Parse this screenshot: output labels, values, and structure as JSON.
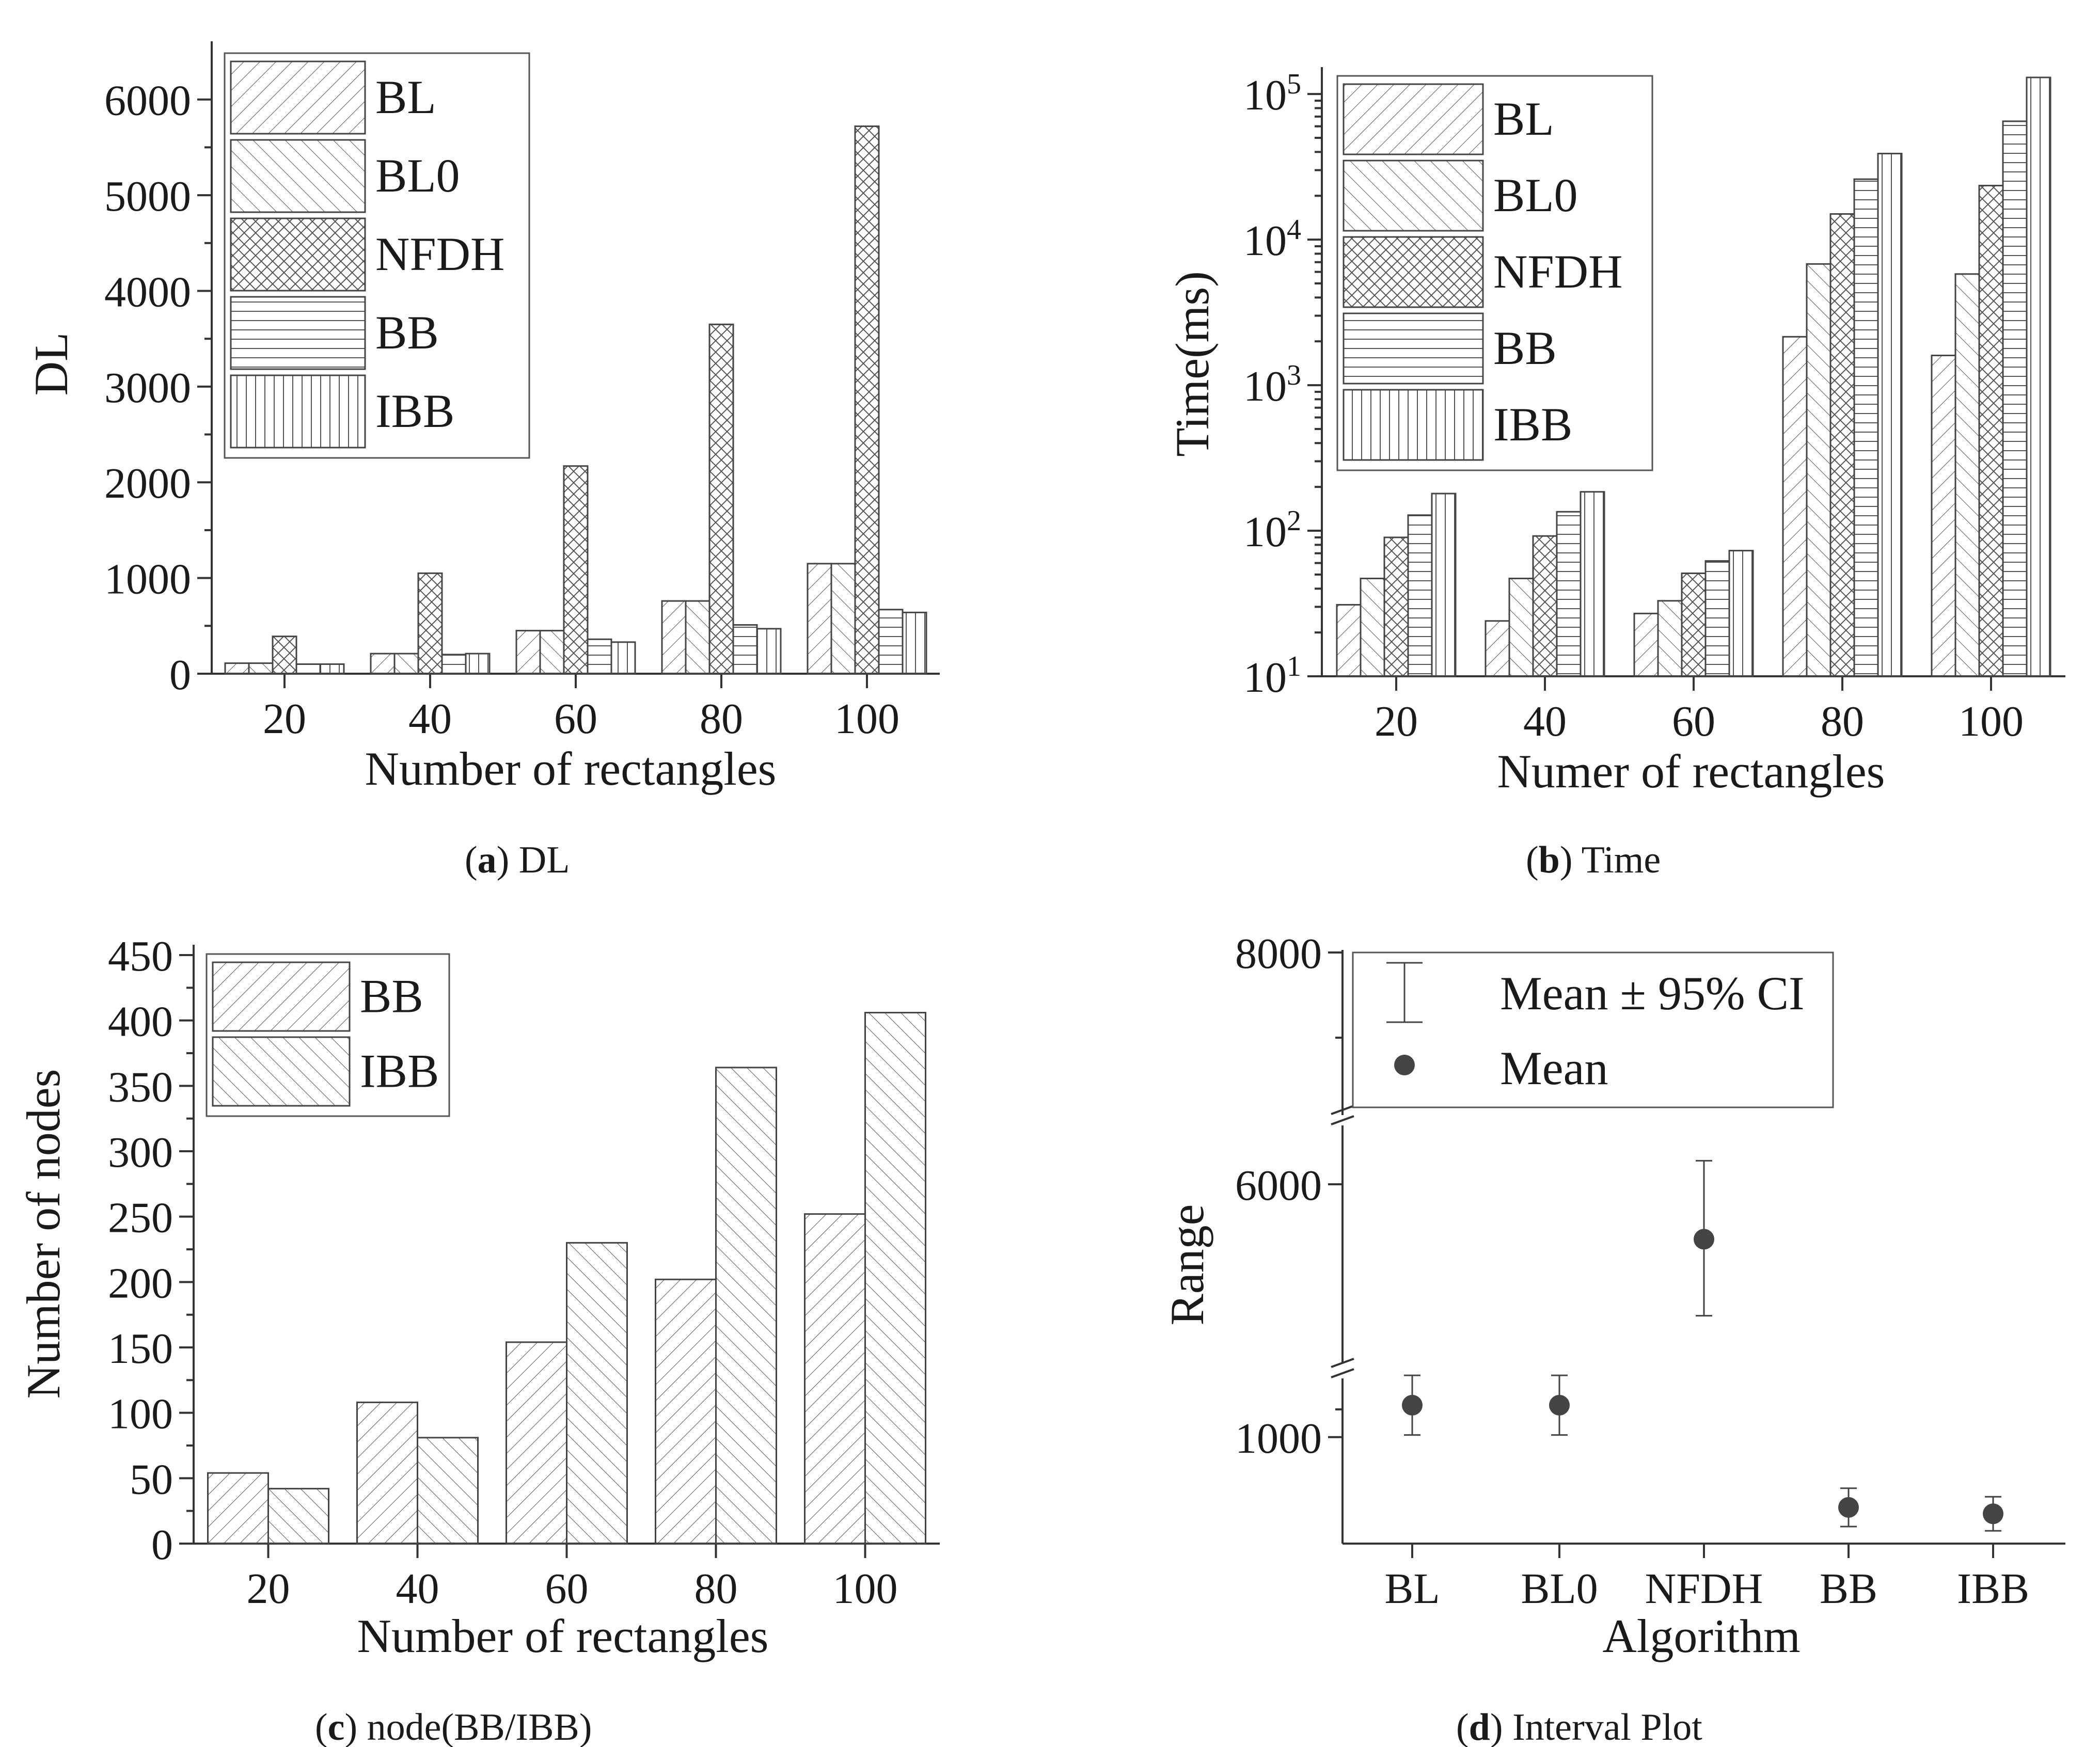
{
  "chart_data": [
    {
      "id": "a",
      "type": "bar",
      "caption_letter": "a",
      "caption_text": ") DL",
      "categories": [
        "20",
        "40",
        "60",
        "80",
        "100"
      ],
      "series": [
        {
          "name": "BL",
          "values": [
            110,
            210,
            450,
            760,
            1150
          ]
        },
        {
          "name": "BL0",
          "values": [
            110,
            210,
            450,
            760,
            1150
          ]
        },
        {
          "name": "NFDH",
          "values": [
            390,
            1050,
            2170,
            3650,
            5720
          ]
        },
        {
          "name": "BB",
          "values": [
            100,
            200,
            360,
            510,
            670
          ]
        },
        {
          "name": "IBB",
          "values": [
            100,
            210,
            330,
            470,
            640
          ]
        }
      ],
      "xlabel": "Number of rectangles",
      "ylabel": "DL",
      "ylim": [
        0,
        6500
      ],
      "yticks": [
        0,
        1000,
        2000,
        3000,
        4000,
        5000,
        6000
      ],
      "legend_position": "top-left"
    },
    {
      "id": "b",
      "type": "bar",
      "yscale": "log",
      "caption_letter": "b",
      "caption_text": ") Time",
      "categories": [
        "20",
        "40",
        "60",
        "80",
        "100"
      ],
      "series": [
        {
          "name": "BL",
          "values": [
            31,
            24,
            27,
            2150,
            1600
          ]
        },
        {
          "name": "BL0",
          "values": [
            47,
            47,
            33,
            6800,
            5800
          ]
        },
        {
          "name": "NFDH",
          "values": [
            90,
            92,
            51,
            15000,
            23500
          ]
        },
        {
          "name": "BB",
          "values": [
            128,
            135,
            62,
            26000,
            65000
          ]
        },
        {
          "name": "IBB",
          "values": [
            180,
            185,
            73,
            39000,
            130000
          ]
        }
      ],
      "xlabel": "Numer of rectangles",
      "ylabel": "Time(ms)",
      "ylim": [
        10,
        130000
      ],
      "yticks": [
        10,
        100,
        1000,
        10000,
        100000
      ],
      "ytick_labels": [
        {
          "base": "10",
          "exp": "1"
        },
        {
          "base": "10",
          "exp": "2"
        },
        {
          "base": "10",
          "exp": "3"
        },
        {
          "base": "10",
          "exp": "4"
        },
        {
          "base": "10",
          "exp": "5"
        }
      ],
      "legend_position": "top-left"
    },
    {
      "id": "c",
      "type": "bar",
      "caption_letter": "c",
      "caption_text": ") node(BB/IBB)",
      "categories": [
        "20",
        "40",
        "60",
        "80",
        "100"
      ],
      "series": [
        {
          "name": "BB",
          "values": [
            54,
            108,
            154,
            202,
            252
          ]
        },
        {
          "name": "IBB",
          "values": [
            42,
            81,
            230,
            364,
            406
          ]
        }
      ],
      "xlabel": "Number of  rectangles",
      "ylabel": "Number of nodes",
      "ylim": [
        0,
        450
      ],
      "yticks": [
        0,
        50,
        100,
        150,
        200,
        250,
        300,
        350,
        400,
        450
      ],
      "legend_position": "top-left"
    },
    {
      "id": "d",
      "type": "scatter",
      "subtype": "interval",
      "caption_letter": "d",
      "caption_text": ") Interval Plot",
      "categories": [
        "BL",
        "BL0",
        "NFDH",
        "BB",
        "IBB"
      ],
      "mean": [
        1150,
        1150,
        5720,
        670,
        640
      ],
      "ci_low": [
        1010,
        1010,
        5330,
        580,
        560
      ],
      "ci_high": [
        1290,
        1290,
        6120,
        760,
        720
      ],
      "xlabel": "Algorithm",
      "ylabel": "Range",
      "axis_break": "between 1000 and 6000 and between 6000 and 8000",
      "yticks": [
        1000,
        6000,
        8000
      ],
      "legend": [
        {
          "name": "Mean ± 95% CI",
          "marker": "errorbar"
        },
        {
          "name": "Mean",
          "marker": "dot"
        }
      ],
      "legend_position": "top"
    }
  ],
  "colors": {
    "axis": "#333333",
    "hatch": "#555555",
    "bar_fill": "#ffffff",
    "point": "#444444"
  }
}
